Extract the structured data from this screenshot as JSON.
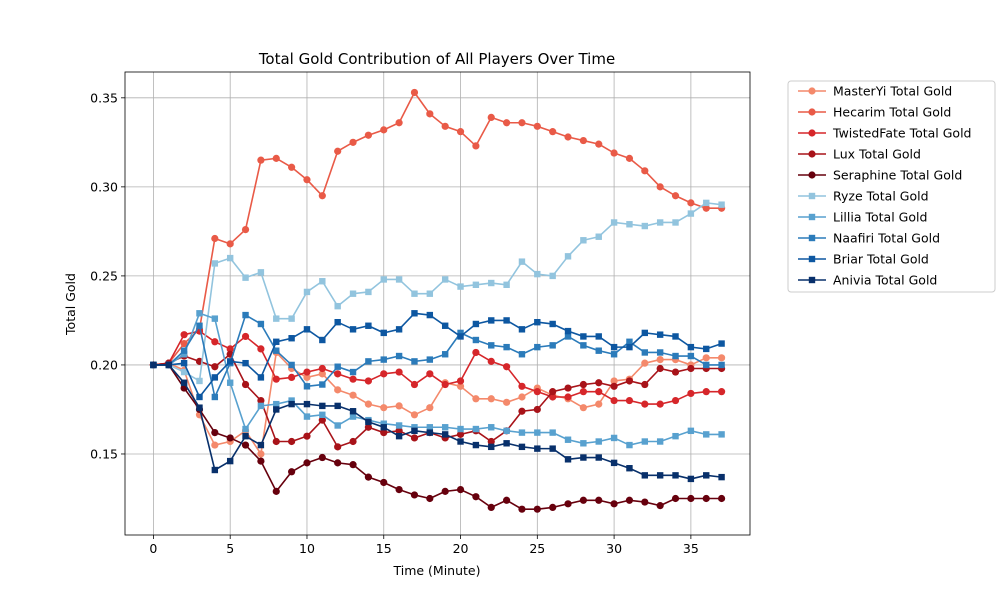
{
  "chart_data": {
    "type": "line",
    "title": "Total Gold Contribution of All Players Over Time",
    "xlabel": "Time (Minute)",
    "ylabel": "Total Gold",
    "xlim": [
      -1.85,
      38.85
    ],
    "ylim": [
      0.1045,
      0.3645
    ],
    "x_ticks": [
      0,
      5,
      10,
      15,
      20,
      25,
      30,
      35
    ],
    "y_ticks": [
      0.15,
      0.2,
      0.25,
      0.3,
      0.35
    ],
    "y_tick_labels": [
      "0.15",
      "0.20",
      "0.25",
      "0.30",
      "0.35"
    ],
    "grid": true,
    "legend_position": "outside-right",
    "x": [
      0,
      1,
      2,
      3,
      4,
      5,
      6,
      7,
      8,
      9,
      10,
      11,
      12,
      13,
      14,
      15,
      16,
      17,
      18,
      19,
      20,
      21,
      22,
      23,
      24,
      25,
      26,
      27,
      28,
      29,
      30,
      31,
      32,
      33,
      34,
      35,
      36,
      37
    ],
    "series": [
      {
        "name": "MasterYi Total Gold",
        "color": "#f4896b",
        "marker": "circle",
        "values": [
          0.2,
          0.201,
          0.197,
          0.172,
          0.155,
          0.157,
          0.163,
          0.15,
          0.207,
          0.198,
          0.193,
          0.195,
          0.186,
          0.183,
          0.178,
          0.176,
          0.177,
          0.172,
          0.176,
          0.19,
          0.188,
          0.181,
          0.181,
          0.179,
          0.182,
          0.187,
          0.183,
          0.181,
          0.176,
          0.178,
          0.191,
          0.192,
          0.201,
          0.203,
          0.203,
          0.2,
          0.204,
          0.204
        ]
      },
      {
        "name": "Hecarim Total Gold",
        "color": "#e95a47",
        "marker": "circle",
        "values": [
          0.2,
          0.201,
          0.212,
          0.22,
          0.271,
          0.268,
          0.276,
          0.315,
          0.316,
          0.311,
          0.304,
          0.295,
          0.32,
          0.325,
          0.329,
          0.332,
          0.336,
          0.353,
          0.341,
          0.334,
          0.331,
          0.323,
          0.339,
          0.336,
          0.336,
          0.334,
          0.331,
          0.328,
          0.326,
          0.324,
          0.319,
          0.316,
          0.309,
          0.3,
          0.295,
          0.291,
          0.288,
          0.288
        ]
      },
      {
        "name": "TwistedFate Total Gold",
        "color": "#d6262a",
        "marker": "circle",
        "values": [
          0.2,
          0.201,
          0.217,
          0.219,
          0.213,
          0.209,
          0.216,
          0.209,
          0.192,
          0.193,
          0.196,
          0.198,
          0.195,
          0.192,
          0.191,
          0.195,
          0.196,
          0.189,
          0.195,
          0.189,
          0.191,
          0.207,
          0.202,
          0.199,
          0.188,
          0.185,
          0.182,
          0.182,
          0.185,
          0.185,
          0.18,
          0.18,
          0.178,
          0.178,
          0.18,
          0.184,
          0.185,
          0.185
        ]
      },
      {
        "name": "Lux Total Gold",
        "color": "#a81319",
        "marker": "circle",
        "values": [
          0.2,
          0.201,
          0.205,
          0.202,
          0.199,
          0.206,
          0.189,
          0.18,
          0.157,
          0.157,
          0.16,
          0.169,
          0.154,
          0.157,
          0.165,
          0.162,
          0.163,
          0.159,
          0.162,
          0.159,
          0.161,
          0.163,
          0.157,
          0.163,
          0.174,
          0.175,
          0.185,
          0.187,
          0.189,
          0.19,
          0.188,
          0.191,
          0.189,
          0.198,
          0.196,
          0.198,
          0.198,
          0.198
        ]
      },
      {
        "name": "Seraphine Total Gold",
        "color": "#67000d",
        "marker": "circle",
        "values": [
          0.2,
          0.2,
          0.187,
          0.175,
          0.162,
          0.159,
          0.155,
          0.146,
          0.129,
          0.14,
          0.145,
          0.148,
          0.145,
          0.144,
          0.137,
          0.134,
          0.13,
          0.127,
          0.125,
          0.129,
          0.13,
          0.126,
          0.12,
          0.124,
          0.119,
          0.119,
          0.12,
          0.122,
          0.124,
          0.124,
          0.122,
          0.124,
          0.123,
          0.121,
          0.125,
          0.125,
          0.125,
          0.125
        ]
      },
      {
        "name": "Ryze Total Gold",
        "color": "#92c4de",
        "marker": "square",
        "values": [
          0.2,
          0.2,
          0.196,
          0.191,
          0.257,
          0.26,
          0.249,
          0.252,
          0.226,
          0.226,
          0.241,
          0.247,
          0.233,
          0.24,
          0.241,
          0.248,
          0.248,
          0.24,
          0.24,
          0.248,
          0.244,
          0.245,
          0.246,
          0.245,
          0.258,
          0.251,
          0.25,
          0.261,
          0.27,
          0.272,
          0.28,
          0.279,
          0.278,
          0.28,
          0.28,
          0.285,
          0.291,
          0.29
        ]
      },
      {
        "name": "Lillia Total Gold",
        "color": "#58a1cf",
        "marker": "square",
        "values": [
          0.2,
          0.2,
          0.206,
          0.229,
          0.226,
          0.19,
          0.164,
          0.177,
          0.178,
          0.18,
          0.171,
          0.172,
          0.166,
          0.171,
          0.169,
          0.167,
          0.166,
          0.165,
          0.165,
          0.165,
          0.164,
          0.164,
          0.165,
          0.163,
          0.162,
          0.162,
          0.162,
          0.158,
          0.156,
          0.157,
          0.159,
          0.155,
          0.157,
          0.157,
          0.16,
          0.163,
          0.161,
          0.161
        ]
      },
      {
        "name": "Naafiri Total Gold",
        "color": "#2b7bba",
        "marker": "square",
        "values": [
          0.2,
          0.2,
          0.208,
          0.222,
          0.182,
          0.201,
          0.228,
          0.223,
          0.208,
          0.2,
          0.188,
          0.189,
          0.199,
          0.196,
          0.202,
          0.203,
          0.205,
          0.202,
          0.203,
          0.206,
          0.218,
          0.214,
          0.211,
          0.21,
          0.206,
          0.21,
          0.211,
          0.216,
          0.211,
          0.208,
          0.206,
          0.213,
          0.207,
          0.207,
          0.205,
          0.205,
          0.2,
          0.2
        ]
      },
      {
        "name": "Briar Total Gold",
        "color": "#0d57a1",
        "marker": "square",
        "values": [
          0.2,
          0.2,
          0.201,
          0.182,
          0.193,
          0.202,
          0.201,
          0.193,
          0.213,
          0.215,
          0.22,
          0.214,
          0.224,
          0.22,
          0.222,
          0.218,
          0.22,
          0.229,
          0.228,
          0.222,
          0.216,
          0.223,
          0.225,
          0.225,
          0.22,
          0.224,
          0.223,
          0.219,
          0.216,
          0.216,
          0.21,
          0.21,
          0.218,
          0.217,
          0.216,
          0.21,
          0.209,
          0.212
        ]
      },
      {
        "name": "Anivia Total Gold",
        "color": "#08306b",
        "marker": "square",
        "values": [
          0.2,
          0.2,
          0.19,
          0.176,
          0.141,
          0.146,
          0.16,
          0.155,
          0.175,
          0.178,
          0.178,
          0.177,
          0.177,
          0.174,
          0.168,
          0.165,
          0.16,
          0.163,
          0.162,
          0.161,
          0.157,
          0.155,
          0.154,
          0.156,
          0.154,
          0.153,
          0.153,
          0.147,
          0.148,
          0.148,
          0.145,
          0.142,
          0.138,
          0.138,
          0.138,
          0.136,
          0.138,
          0.137
        ]
      }
    ]
  }
}
